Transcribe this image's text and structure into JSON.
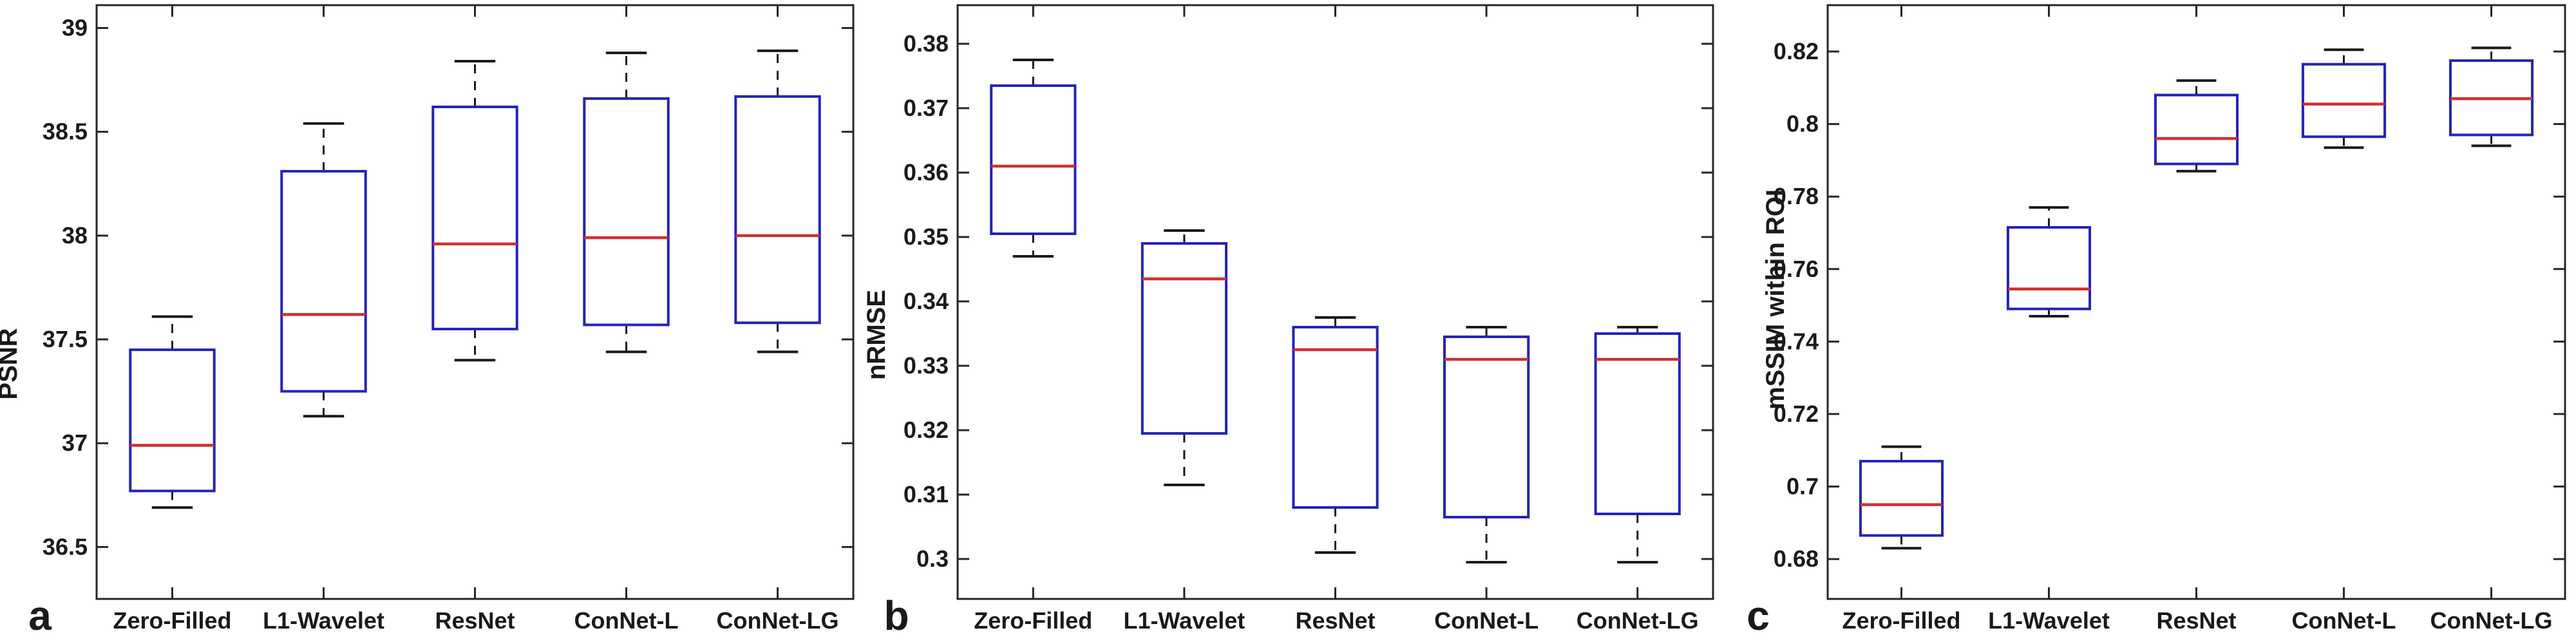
{
  "figure": {
    "background": "#ffffff",
    "panel_letters": [
      "a",
      "b",
      "c"
    ],
    "colors": {
      "box_edge": "#2424b4",
      "median_line": "#d03030",
      "whisker": "#1a1a1a",
      "axis": "#262626",
      "text": "#1a1a1a"
    }
  },
  "chart_data": [
    {
      "type": "boxplot",
      "panel_label": "a",
      "title": "",
      "xlabel": "",
      "ylabel": "PSNR",
      "grid": false,
      "legend": null,
      "whisker_style": "dashed",
      "categories": [
        "Zero-Filled",
        "L1-Wavelet",
        "ResNet",
        "ConNet-L",
        "ConNet-LG"
      ],
      "ylim": [
        36.25,
        39.11
      ],
      "yticks": [
        36.5,
        37,
        37.5,
        38,
        38.5,
        39
      ],
      "ytick_labels": [
        "36.5",
        "37",
        "37.5",
        "38",
        "38.5",
        "39"
      ],
      "series": [
        {
          "name": "Zero-Filled",
          "whisker_low": 36.69,
          "q1": 36.77,
          "median": 36.99,
          "q3": 37.45,
          "whisker_high": 37.61
        },
        {
          "name": "L1-Wavelet",
          "whisker_low": 37.13,
          "q1": 37.25,
          "median": 37.62,
          "q3": 38.31,
          "whisker_high": 38.54
        },
        {
          "name": "ResNet",
          "whisker_low": 37.4,
          "q1": 37.55,
          "median": 37.96,
          "q3": 38.62,
          "whisker_high": 38.84
        },
        {
          "name": "ConNet-L",
          "whisker_low": 37.44,
          "q1": 37.57,
          "median": 37.99,
          "q3": 38.66,
          "whisker_high": 38.88
        },
        {
          "name": "ConNet-LG",
          "whisker_low": 37.44,
          "q1": 37.58,
          "median": 38.0,
          "q3": 38.67,
          "whisker_high": 38.89
        }
      ]
    },
    {
      "type": "boxplot",
      "panel_label": "b",
      "title": "",
      "xlabel": "",
      "ylabel": "nRMSE",
      "grid": false,
      "legend": null,
      "whisker_style": "dashed",
      "categories": [
        "Zero-Filled",
        "L1-Wavelet",
        "ResNet",
        "ConNet-L",
        "ConNet-LG"
      ],
      "ylim": [
        0.2938,
        0.386
      ],
      "yticks": [
        0.3,
        0.31,
        0.32,
        0.33,
        0.34,
        0.35,
        0.36,
        0.37,
        0.38
      ],
      "ytick_labels": [
        "0.3",
        "0.31",
        "0.32",
        "0.33",
        "0.34",
        "0.35",
        "0.36",
        "0.37",
        "0.38"
      ],
      "series": [
        {
          "name": "Zero-Filled",
          "whisker_low": 0.347,
          "q1": 0.3505,
          "median": 0.361,
          "q3": 0.3735,
          "whisker_high": 0.3775
        },
        {
          "name": "L1-Wavelet",
          "whisker_low": 0.3115,
          "q1": 0.3195,
          "median": 0.3435,
          "q3": 0.349,
          "whisker_high": 0.351
        },
        {
          "name": "ResNet",
          "whisker_low": 0.301,
          "q1": 0.308,
          "median": 0.3325,
          "q3": 0.336,
          "whisker_high": 0.3375
        },
        {
          "name": "ConNet-L",
          "whisker_low": 0.2995,
          "q1": 0.3065,
          "median": 0.331,
          "q3": 0.3345,
          "whisker_high": 0.336
        },
        {
          "name": "ConNet-LG",
          "whisker_low": 0.2995,
          "q1": 0.307,
          "median": 0.331,
          "q3": 0.335,
          "whisker_high": 0.336
        }
      ]
    },
    {
      "type": "boxplot",
      "panel_label": "c",
      "title": "",
      "xlabel": "",
      "ylabel": "mSSIM within ROI",
      "grid": false,
      "legend": null,
      "whisker_style": "dashed",
      "categories": [
        "Zero-Filled",
        "L1-Wavelet",
        "ResNet",
        "ConNet-L",
        "ConNet-LG"
      ],
      "ylim": [
        0.669,
        0.8328
      ],
      "yticks": [
        0.68,
        0.7,
        0.72,
        0.74,
        0.76,
        0.78,
        0.8,
        0.82
      ],
      "ytick_labels": [
        "0.68",
        "0.7",
        "0.72",
        "0.74",
        "0.76",
        "0.78",
        "0.8",
        "0.82"
      ],
      "series": [
        {
          "name": "Zero-Filled",
          "whisker_low": 0.683,
          "q1": 0.6865,
          "median": 0.695,
          "q3": 0.707,
          "whisker_high": 0.711
        },
        {
          "name": "L1-Wavelet",
          "whisker_low": 0.747,
          "q1": 0.749,
          "median": 0.7545,
          "q3": 0.7715,
          "whisker_high": 0.777
        },
        {
          "name": "ResNet",
          "whisker_low": 0.787,
          "q1": 0.789,
          "median": 0.796,
          "q3": 0.808,
          "whisker_high": 0.812
        },
        {
          "name": "ConNet-L",
          "whisker_low": 0.7935,
          "q1": 0.7965,
          "median": 0.8055,
          "q3": 0.8165,
          "whisker_high": 0.8205
        },
        {
          "name": "ConNet-LG",
          "whisker_low": 0.794,
          "q1": 0.797,
          "median": 0.807,
          "q3": 0.8175,
          "whisker_high": 0.821
        }
      ]
    }
  ]
}
